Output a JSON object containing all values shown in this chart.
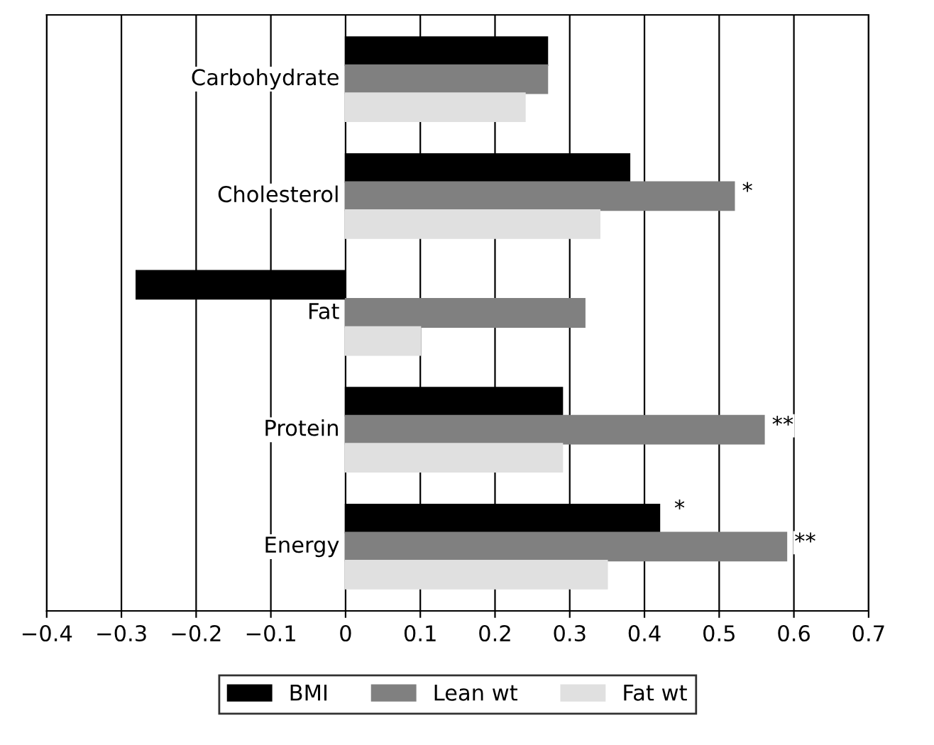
{
  "chart_data": {
    "type": "bar",
    "orientation": "horizontal",
    "categories": [
      "Carbohydrate",
      "Cholesterol",
      "Fat",
      "Protein",
      "Energy"
    ],
    "series": [
      {
        "name": "BMI",
        "color": "#000000",
        "values": [
          0.27,
          0.38,
          -0.28,
          0.29,
          0.42
        ]
      },
      {
        "name": "Lean wt",
        "color": "#808080",
        "values": [
          0.27,
          0.52,
          0.32,
          0.56,
          0.59
        ]
      },
      {
        "name": "Fat wt",
        "color": "#e0e0e0",
        "values": [
          0.24,
          0.34,
          0.1,
          0.29,
          0.35
        ]
      }
    ],
    "xlim": [
      -0.4,
      0.7
    ],
    "xticks": [
      {
        "value": -0.4,
        "label": "−0.4"
      },
      {
        "value": -0.3,
        "label": "−0.3"
      },
      {
        "value": -0.2,
        "label": "−0.2"
      },
      {
        "value": -0.1,
        "label": "−0.1"
      },
      0,
      0.1,
      0.2,
      0.3,
      0.4,
      0.5,
      0.6,
      0.7
    ],
    "annotations": [
      {
        "text": "*",
        "x": 0.52,
        "y": "Cholesterol"
      },
      {
        "text": "**",
        "x": 0.56,
        "y": "Protein"
      },
      "*",
      {
        "text": "**",
        "x": 0.59,
        "y": "Energy"
      }
    ],
    "grid": "x",
    "legend": "bottom"
  }
}
